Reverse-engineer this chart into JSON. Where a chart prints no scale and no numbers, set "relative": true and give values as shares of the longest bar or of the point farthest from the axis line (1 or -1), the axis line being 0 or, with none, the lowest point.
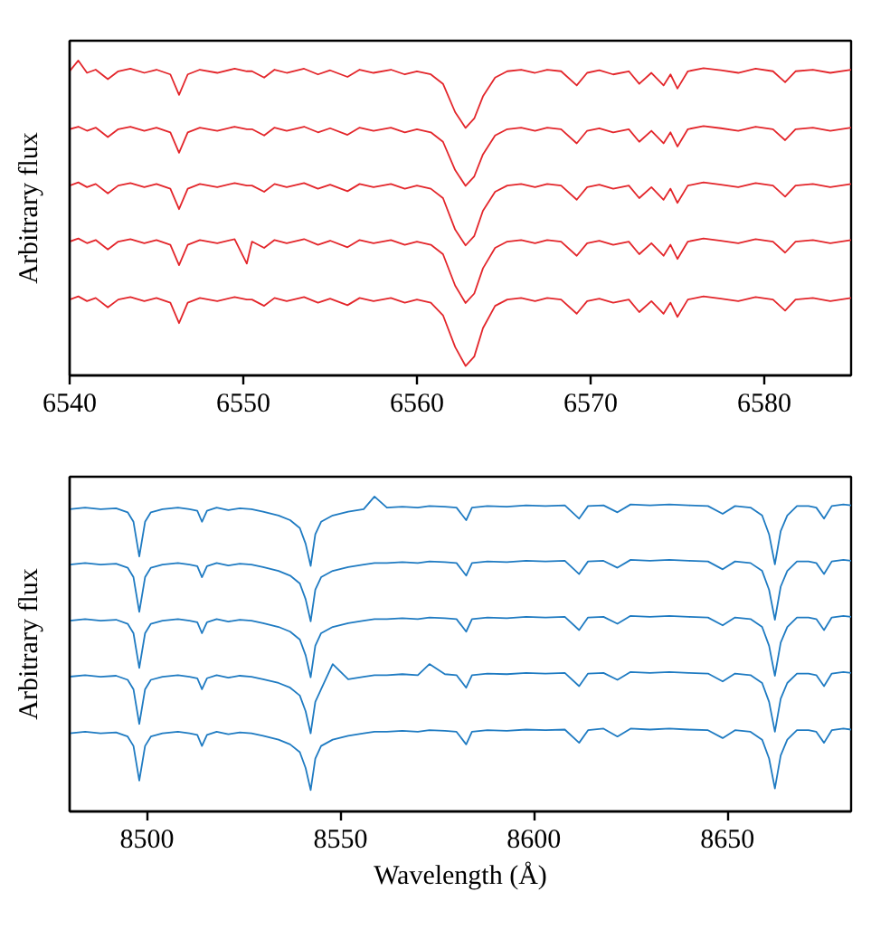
{
  "chart_data": [
    {
      "type": "line",
      "ylabel": "Arbitrary flux",
      "relative": true,
      "grid": false,
      "tick_labels": "x",
      "line_style": "solid",
      "xlim": [
        6540,
        6585
      ],
      "xticks": [
        6540,
        6550,
        6560,
        6570,
        6580
      ],
      "x": [
        6540,
        6540.5,
        6541,
        6541.5,
        6542.2,
        6542.8,
        6543.5,
        6544.3,
        6545,
        6545.8,
        6546.3,
        6546.8,
        6547.5,
        6548.5,
        6549.5,
        6550.2,
        6550.5,
        6551.2,
        6551.8,
        6552.5,
        6553.5,
        6554.3,
        6555,
        6556,
        6556.7,
        6557.5,
        6558.5,
        6559.3,
        6560,
        6560.8,
        6561.5,
        6562.2,
        6562.8,
        6563.3,
        6563.8,
        6564.5,
        6565.2,
        6566,
        6566.8,
        6567.5,
        6568.3,
        6569.2,
        6569.8,
        6570.5,
        6571.3,
        6572.2,
        6572.8,
        6573.5,
        6574.2,
        6574.6,
        6575,
        6575.6,
        6576.5,
        6577.5,
        6578.5,
        6579.5,
        6580.5,
        6581.2,
        6581.8,
        6582.8,
        6583.8,
        6585
      ],
      "series": [
        {
          "color": "#e3262b",
          "values": [
            0.966,
            1.0,
            0.961,
            0.971,
            0.941,
            0.966,
            0.974,
            0.961,
            0.971,
            0.956,
            0.891,
            0.956,
            0.971,
            0.961,
            0.974,
            0.966,
            0.966,
            0.946,
            0.971,
            0.961,
            0.974,
            0.956,
            0.969,
            0.948,
            0.971,
            0.961,
            0.971,
            0.956,
            0.966,
            0.956,
            0.926,
            0.836,
            0.786,
            0.816,
            0.886,
            0.946,
            0.966,
            0.971,
            0.961,
            0.971,
            0.966,
            0.921,
            0.961,
            0.969,
            0.956,
            0.966,
            0.926,
            0.961,
            0.921,
            0.956,
            0.911,
            0.966,
            0.976,
            0.969,
            0.961,
            0.974,
            0.966,
            0.931,
            0.966,
            0.971,
            0.961,
            0.971
          ]
        },
        {
          "color": "#e3262b",
          "values": [
            0.782,
            0.79,
            0.777,
            0.787,
            0.757,
            0.782,
            0.79,
            0.777,
            0.787,
            0.772,
            0.707,
            0.772,
            0.787,
            0.777,
            0.79,
            0.782,
            0.782,
            0.762,
            0.787,
            0.777,
            0.79,
            0.772,
            0.785,
            0.764,
            0.787,
            0.777,
            0.787,
            0.772,
            0.782,
            0.772,
            0.742,
            0.652,
            0.602,
            0.632,
            0.702,
            0.762,
            0.782,
            0.787,
            0.777,
            0.787,
            0.782,
            0.737,
            0.777,
            0.785,
            0.772,
            0.782,
            0.742,
            0.777,
            0.737,
            0.772,
            0.727,
            0.782,
            0.792,
            0.785,
            0.777,
            0.79,
            0.782,
            0.747,
            0.782,
            0.787,
            0.777,
            0.787
          ]
        },
        {
          "color": "#e3262b",
          "values": [
            0.603,
            0.613,
            0.598,
            0.608,
            0.578,
            0.603,
            0.611,
            0.598,
            0.608,
            0.593,
            0.528,
            0.593,
            0.608,
            0.598,
            0.611,
            0.603,
            0.603,
            0.583,
            0.608,
            0.598,
            0.611,
            0.593,
            0.606,
            0.585,
            0.608,
            0.598,
            0.608,
            0.593,
            0.603,
            0.593,
            0.563,
            0.463,
            0.413,
            0.443,
            0.523,
            0.583,
            0.603,
            0.608,
            0.598,
            0.608,
            0.603,
            0.558,
            0.598,
            0.606,
            0.593,
            0.603,
            0.563,
            0.598,
            0.558,
            0.593,
            0.548,
            0.603,
            0.613,
            0.606,
            0.598,
            0.611,
            0.603,
            0.568,
            0.603,
            0.608,
            0.598,
            0.608
          ]
        },
        {
          "color": "#e3262b",
          "values": [
            0.425,
            0.435,
            0.42,
            0.43,
            0.4,
            0.425,
            0.433,
            0.42,
            0.43,
            0.415,
            0.35,
            0.415,
            0.43,
            0.42,
            0.433,
            0.355,
            0.425,
            0.405,
            0.43,
            0.42,
            0.433,
            0.415,
            0.428,
            0.407,
            0.43,
            0.42,
            0.43,
            0.415,
            0.425,
            0.415,
            0.385,
            0.285,
            0.23,
            0.26,
            0.34,
            0.405,
            0.425,
            0.43,
            0.42,
            0.43,
            0.425,
            0.38,
            0.42,
            0.428,
            0.415,
            0.425,
            0.385,
            0.42,
            0.38,
            0.415,
            0.37,
            0.425,
            0.435,
            0.428,
            0.42,
            0.433,
            0.425,
            0.39,
            0.425,
            0.43,
            0.42,
            0.43
          ]
        },
        {
          "color": "#e3262b",
          "values": [
            0.241,
            0.251,
            0.236,
            0.246,
            0.216,
            0.241,
            0.249,
            0.236,
            0.246,
            0.231,
            0.166,
            0.231,
            0.246,
            0.236,
            0.249,
            0.241,
            0.241,
            0.221,
            0.246,
            0.236,
            0.249,
            0.231,
            0.244,
            0.223,
            0.246,
            0.236,
            0.246,
            0.231,
            0.241,
            0.231,
            0.191,
            0.09,
            0.03,
            0.06,
            0.15,
            0.221,
            0.241,
            0.246,
            0.236,
            0.246,
            0.241,
            0.196,
            0.236,
            0.244,
            0.231,
            0.241,
            0.201,
            0.236,
            0.196,
            0.231,
            0.186,
            0.241,
            0.251,
            0.244,
            0.236,
            0.249,
            0.241,
            0.206,
            0.241,
            0.246,
            0.236,
            0.246
          ]
        }
      ]
    },
    {
      "type": "line",
      "xlabel": "Wavelength (Å)",
      "ylabel": "Arbitrary flux",
      "relative": true,
      "grid": false,
      "tick_labels": "x",
      "line_style": "solid",
      "xlim": [
        8480,
        8682
      ],
      "xticks": [
        8500,
        8550,
        8600,
        8650
      ],
      "x": [
        8480,
        8484,
        8488,
        8492,
        8495,
        8496.5,
        8498,
        8499.5,
        8501,
        8504,
        8508,
        8511,
        8513,
        8514.2,
        8515.5,
        8518,
        8521,
        8524,
        8527,
        8530,
        8534,
        8537,
        8539.5,
        8541,
        8542.3,
        8543.5,
        8545,
        8548,
        8552,
        8556,
        8558.8,
        8562,
        8566,
        8570,
        8573,
        8577,
        8580,
        8582.5,
        8584,
        8588,
        8593,
        8598,
        8603,
        8608,
        8611.7,
        8614,
        8618,
        8621.6,
        8625,
        8630,
        8635,
        8640,
        8645,
        8648.8,
        8652,
        8656,
        8659,
        8660.8,
        8662.3,
        8663.8,
        8665.5,
        8668,
        8671,
        8673,
        8675,
        8677,
        8680,
        8682
      ],
      "series": [
        {
          "color": "#1f7bc2",
          "values": [
            0.96,
            0.965,
            0.96,
            0.963,
            0.95,
            0.92,
            0.81,
            0.92,
            0.95,
            0.96,
            0.965,
            0.96,
            0.955,
            0.92,
            0.955,
            0.965,
            0.957,
            0.963,
            0.96,
            0.952,
            0.94,
            0.925,
            0.9,
            0.85,
            0.78,
            0.88,
            0.92,
            0.94,
            0.952,
            0.96,
            1.0,
            0.965,
            0.968,
            0.965,
            0.97,
            0.968,
            0.965,
            0.925,
            0.965,
            0.97,
            0.968,
            0.972,
            0.97,
            0.972,
            0.93,
            0.97,
            0.972,
            0.95,
            0.975,
            0.972,
            0.975,
            0.972,
            0.97,
            0.945,
            0.97,
            0.965,
            0.94,
            0.88,
            0.785,
            0.89,
            0.94,
            0.97,
            0.97,
            0.965,
            0.93,
            0.97,
            0.975,
            0.972
          ]
        },
        {
          "color": "#1f7bc2",
          "values": [
            0.784,
            0.789,
            0.784,
            0.787,
            0.774,
            0.744,
            0.634,
            0.744,
            0.774,
            0.784,
            0.789,
            0.784,
            0.779,
            0.744,
            0.779,
            0.789,
            0.781,
            0.787,
            0.784,
            0.776,
            0.764,
            0.749,
            0.724,
            0.674,
            0.604,
            0.704,
            0.744,
            0.764,
            0.776,
            0.784,
            0.789,
            0.789,
            0.792,
            0.789,
            0.794,
            0.792,
            0.789,
            0.749,
            0.789,
            0.794,
            0.792,
            0.796,
            0.794,
            0.796,
            0.754,
            0.794,
            0.796,
            0.774,
            0.799,
            0.796,
            0.799,
            0.796,
            0.794,
            0.769,
            0.794,
            0.789,
            0.764,
            0.704,
            0.609,
            0.714,
            0.764,
            0.794,
            0.794,
            0.789,
            0.754,
            0.794,
            0.799,
            0.796
          ]
        },
        {
          "color": "#1f7bc2",
          "values": [
            0.606,
            0.611,
            0.606,
            0.609,
            0.596,
            0.566,
            0.456,
            0.566,
            0.596,
            0.606,
            0.611,
            0.606,
            0.601,
            0.566,
            0.601,
            0.611,
            0.603,
            0.609,
            0.606,
            0.598,
            0.586,
            0.571,
            0.546,
            0.496,
            0.426,
            0.526,
            0.566,
            0.586,
            0.598,
            0.606,
            0.611,
            0.611,
            0.614,
            0.611,
            0.616,
            0.614,
            0.611,
            0.571,
            0.611,
            0.616,
            0.614,
            0.618,
            0.616,
            0.618,
            0.576,
            0.616,
            0.618,
            0.596,
            0.621,
            0.618,
            0.621,
            0.618,
            0.616,
            0.591,
            0.616,
            0.611,
            0.586,
            0.526,
            0.431,
            0.536,
            0.586,
            0.616,
            0.616,
            0.611,
            0.576,
            0.616,
            0.621,
            0.618
          ]
        },
        {
          "color": "#1f7bc2",
          "values": [
            0.428,
            0.433,
            0.428,
            0.431,
            0.418,
            0.388,
            0.278,
            0.388,
            0.418,
            0.428,
            0.433,
            0.428,
            0.423,
            0.388,
            0.423,
            0.433,
            0.425,
            0.431,
            0.428,
            0.42,
            0.408,
            0.393,
            0.368,
            0.318,
            0.248,
            0.348,
            0.388,
            0.468,
            0.42,
            0.428,
            0.433,
            0.433,
            0.436,
            0.433,
            0.468,
            0.436,
            0.433,
            0.393,
            0.433,
            0.438,
            0.436,
            0.44,
            0.438,
            0.44,
            0.398,
            0.438,
            0.44,
            0.418,
            0.443,
            0.44,
            0.443,
            0.44,
            0.438,
            0.413,
            0.438,
            0.433,
            0.408,
            0.348,
            0.253,
            0.358,
            0.408,
            0.438,
            0.438,
            0.433,
            0.398,
            0.438,
            0.443,
            0.44
          ]
        },
        {
          "color": "#1f7bc2",
          "values": [
            0.248,
            0.253,
            0.248,
            0.251,
            0.238,
            0.208,
            0.098,
            0.208,
            0.238,
            0.248,
            0.253,
            0.248,
            0.243,
            0.208,
            0.243,
            0.253,
            0.245,
            0.251,
            0.248,
            0.24,
            0.228,
            0.213,
            0.188,
            0.138,
            0.068,
            0.168,
            0.208,
            0.228,
            0.24,
            0.248,
            0.253,
            0.253,
            0.256,
            0.253,
            0.258,
            0.256,
            0.253,
            0.213,
            0.253,
            0.258,
            0.256,
            0.26,
            0.258,
            0.26,
            0.218,
            0.258,
            0.263,
            0.238,
            0.263,
            0.26,
            0.263,
            0.26,
            0.258,
            0.233,
            0.258,
            0.253,
            0.228,
            0.168,
            0.073,
            0.178,
            0.228,
            0.258,
            0.258,
            0.253,
            0.218,
            0.258,
            0.263,
            0.26
          ]
        }
      ]
    }
  ]
}
